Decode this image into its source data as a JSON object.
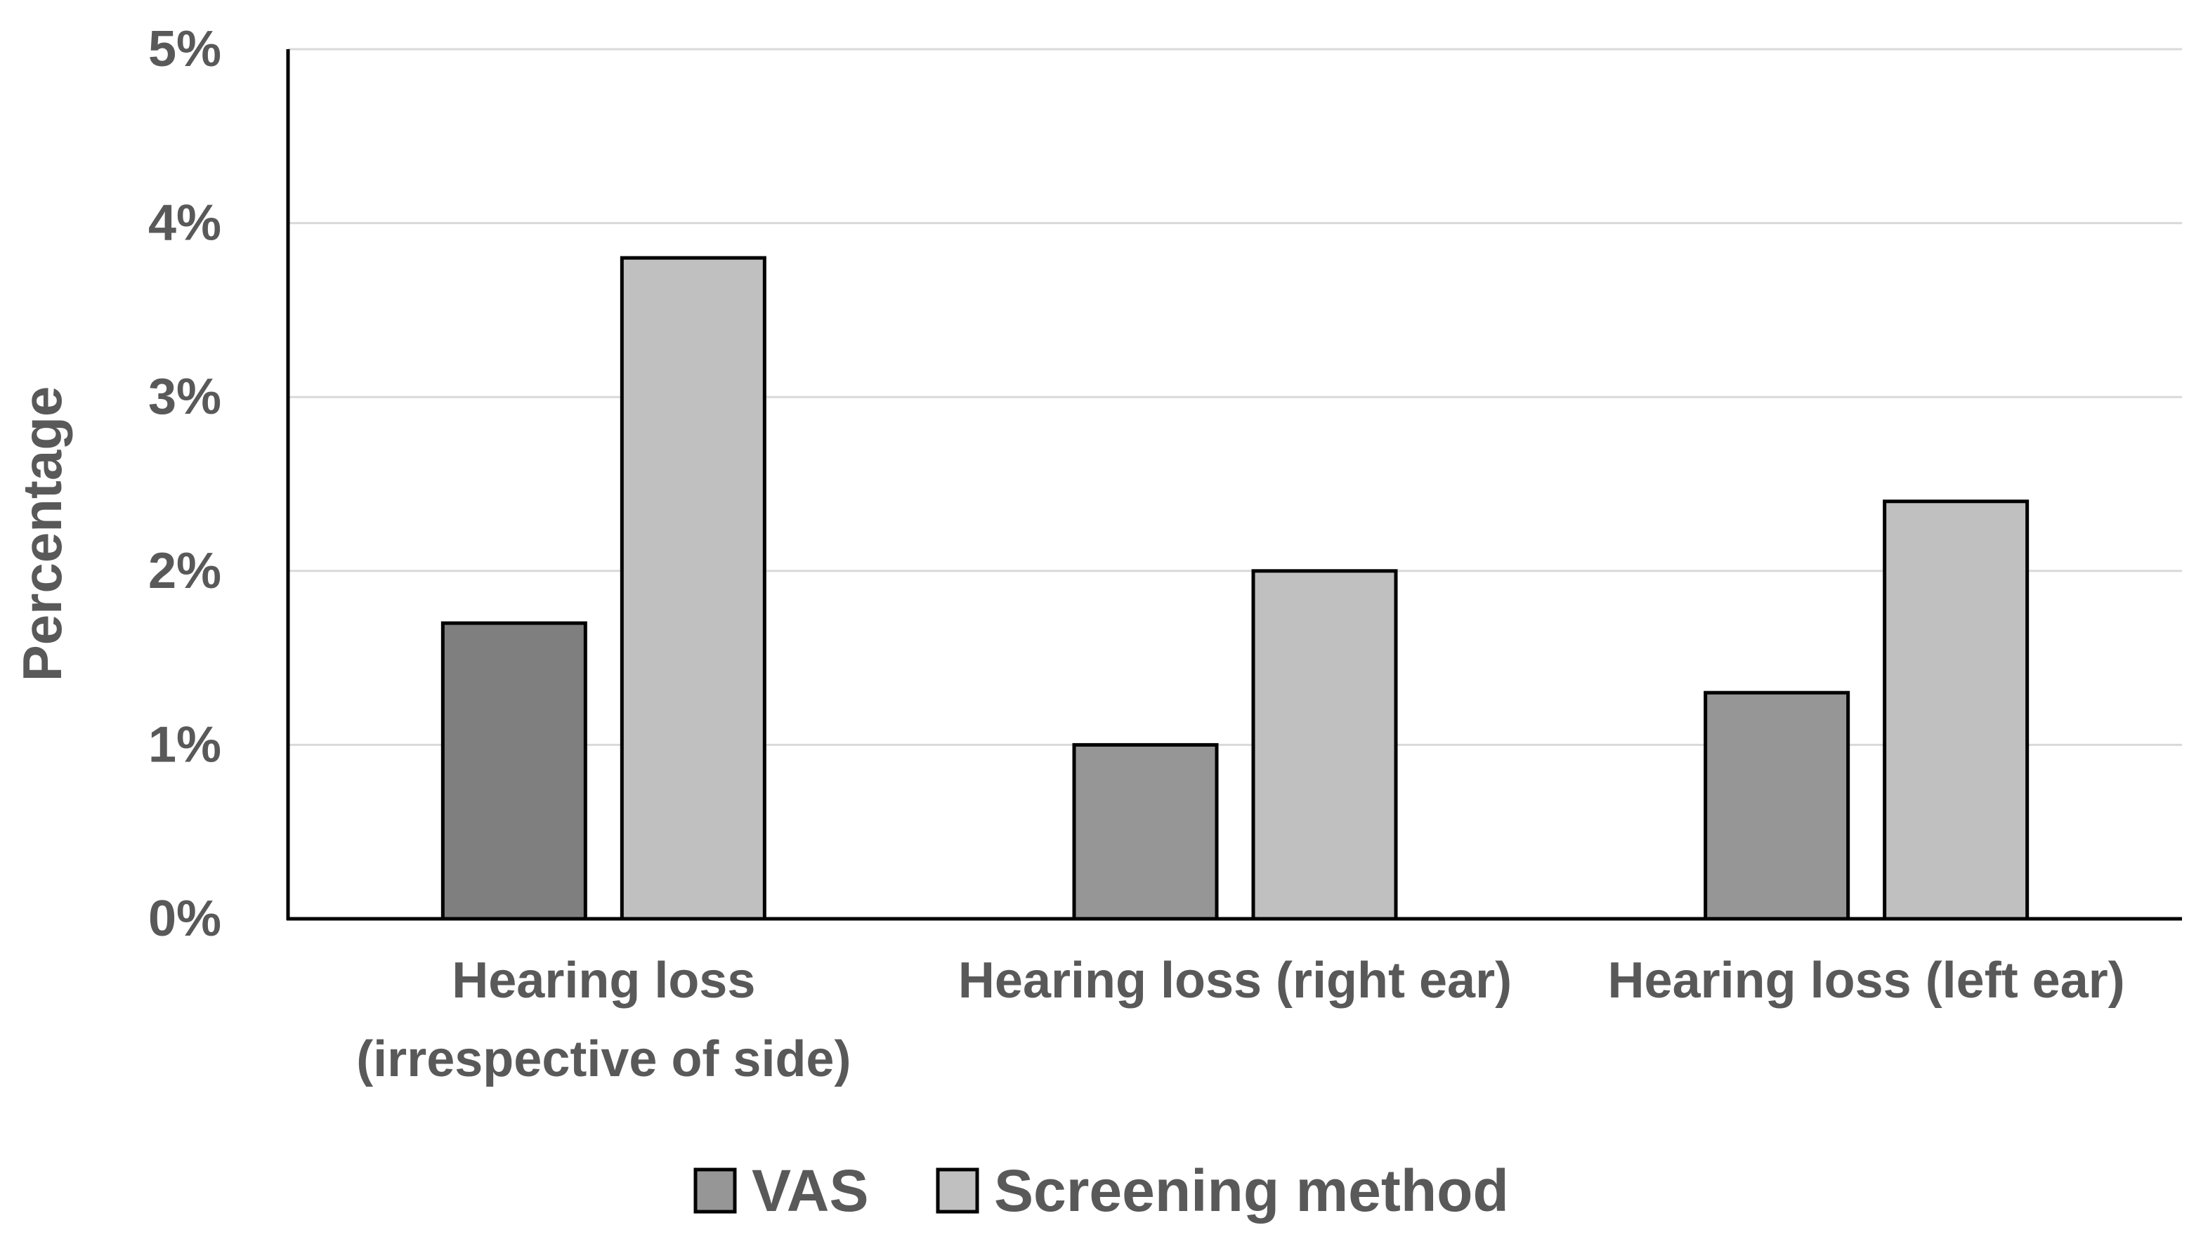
{
  "chart_data": {
    "type": "bar",
    "title": "",
    "xlabel": "",
    "ylabel": "Percentage",
    "ylim": [
      0,
      5
    ],
    "yticks": [
      "0%",
      "1%",
      "2%",
      "3%",
      "4%",
      "5%"
    ],
    "grid": true,
    "categories": [
      [
        "Hearing loss",
        "(irrespective of side)"
      ],
      [
        "Hearing loss (right ear)"
      ],
      [
        "Hearing loss (left ear)"
      ]
    ],
    "series": [
      {
        "name": "VAS",
        "values": [
          1.7,
          1.0,
          1.3
        ],
        "colors": [
          "#7f7f7f",
          "#969696",
          "#969696"
        ]
      },
      {
        "name": "Screening method",
        "values": [
          3.8,
          2.0,
          2.4
        ],
        "colors": [
          "#c0c0c0",
          "#c0c0c0",
          "#c0c0c0"
        ]
      }
    ],
    "legend": "bottom",
    "colors": {
      "text": "#595959",
      "axis": "#000000",
      "grid": "#d9d9d9",
      "bar_edge": "#000000"
    }
  }
}
